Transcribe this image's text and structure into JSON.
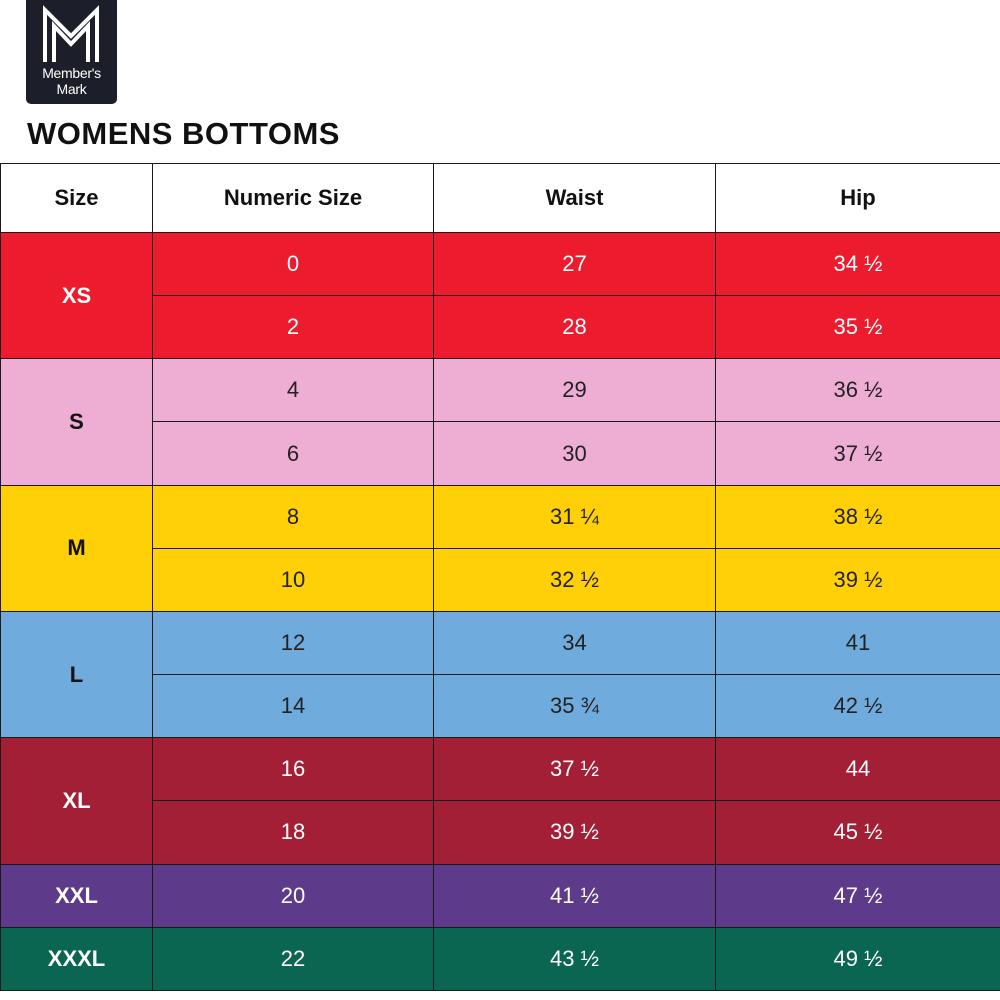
{
  "brand": {
    "line1": "Member's",
    "line2": "Mark"
  },
  "title": "WOMENS BOTTOMS",
  "headers": [
    "Size",
    "Numeric Size",
    "Waist",
    "Hip"
  ],
  "groups": [
    {
      "size": "XS",
      "bg": "#ec1c2e",
      "fg": "#ffffff",
      "label_fg": "#ffffff",
      "rows": [
        {
          "numeric": "0",
          "waist": "27",
          "hip": "34 ½"
        },
        {
          "numeric": "2",
          "waist": "28",
          "hip": "35 ½"
        }
      ]
    },
    {
      "size": "S",
      "bg": "#eeadd2",
      "fg": "#222222",
      "label_fg": "#111111",
      "rows": [
        {
          "numeric": "4",
          "waist": "29",
          "hip": "36 ½"
        },
        {
          "numeric": "6",
          "waist": "30",
          "hip": "37 ½"
        }
      ]
    },
    {
      "size": "M",
      "bg": "#ffd008",
      "fg": "#222222",
      "label_fg": "#111111",
      "rows": [
        {
          "numeric": "8",
          "waist": "31 ¼",
          "hip": "38 ½"
        },
        {
          "numeric": "10",
          "waist": "32 ½",
          "hip": "39 ½"
        }
      ]
    },
    {
      "size": "L",
      "bg": "#6fabdd",
      "fg": "#222222",
      "label_fg": "#111111",
      "rows": [
        {
          "numeric": "12",
          "waist": "34",
          "hip": "41"
        },
        {
          "numeric": "14",
          "waist": "35 ¾",
          "hip": "42 ½"
        }
      ]
    },
    {
      "size": "XL",
      "bg": "#a31f36",
      "fg": "#ffffff",
      "label_fg": "#ffffff",
      "rows": [
        {
          "numeric": "16",
          "waist": "37 ½",
          "hip": "44"
        },
        {
          "numeric": "18",
          "waist": "39 ½",
          "hip": "45 ½"
        }
      ]
    },
    {
      "size": "XXL",
      "bg": "#5e3b8a",
      "fg": "#ffffff",
      "label_fg": "#ffffff",
      "rows": [
        {
          "numeric": "20",
          "waist": "41 ½",
          "hip": "47 ½"
        }
      ]
    },
    {
      "size": "XXXL",
      "bg": "#0b6651",
      "fg": "#ffffff",
      "label_fg": "#ffffff",
      "rows": [
        {
          "numeric": "22",
          "waist": "43 ½",
          "hip": "49 ½"
        }
      ]
    }
  ]
}
